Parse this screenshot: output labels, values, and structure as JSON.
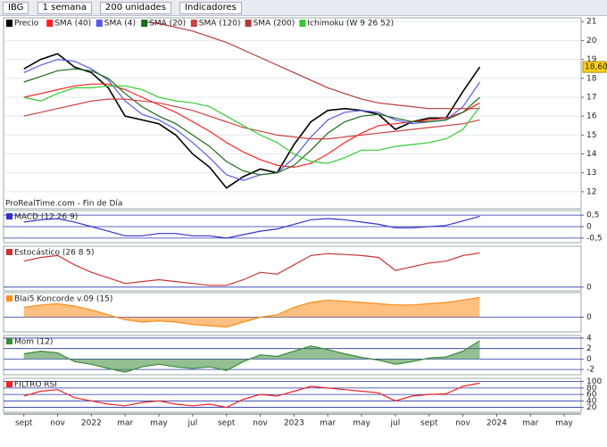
{
  "toolbar": {
    "symbol": "IBG",
    "period": "1 semana",
    "units": "200 unidades",
    "indicators": "Indicadores"
  },
  "chart_data": [
    {
      "type": "line",
      "annotation": "ProRealTime.com - Fin de Día",
      "x": [
        0,
        1,
        2,
        3,
        4,
        5,
        6,
        7,
        8,
        9,
        10,
        11,
        12,
        13,
        14,
        15,
        16,
        17,
        18,
        19,
        20,
        21,
        22,
        23,
        24,
        25,
        26,
        27
      ],
      "xlim": [
        -1.2,
        33
      ],
      "xticks": [
        {
          "value": 0,
          "label": "sept"
        },
        {
          "value": 2,
          "label": "nov"
        },
        {
          "value": 4,
          "label": "2022"
        },
        {
          "value": 6,
          "label": "mar"
        },
        {
          "value": 8,
          "label": "may"
        },
        {
          "value": 10,
          "label": "jul"
        },
        {
          "value": 12,
          "label": "sept"
        },
        {
          "value": 14,
          "label": "nov"
        },
        {
          "value": 16,
          "label": "2023"
        },
        {
          "value": 18,
          "label": "mar"
        },
        {
          "value": 20,
          "label": "may"
        },
        {
          "value": 22,
          "label": "jul"
        },
        {
          "value": 24,
          "label": "sept"
        },
        {
          "value": 26,
          "label": "nov"
        },
        {
          "value": 28,
          "label": "2024"
        },
        {
          "value": 30,
          "label": "mar"
        },
        {
          "value": 32,
          "label": "may"
        }
      ],
      "ylim": [
        11.1,
        21.2
      ],
      "yticks": [
        12,
        13,
        14,
        15,
        16,
        17,
        18,
        19,
        20,
        21
      ],
      "series": [
        {
          "name": "Precio",
          "color": "#000000",
          "values": [
            18.5,
            19.0,
            19.3,
            18.6,
            18.3,
            17.5,
            16.0,
            15.8,
            15.6,
            15.0,
            14.0,
            13.3,
            12.2,
            12.8,
            13.2,
            13.0,
            14.5,
            15.7,
            16.3,
            16.4,
            16.3,
            16.1,
            15.3,
            15.7,
            15.9,
            15.9,
            17.3,
            18.6
          ],
          "value_labels": [
            null,
            null,
            null,
            null,
            null,
            null,
            null,
            null,
            null,
            null,
            null,
            null,
            null,
            null,
            null,
            null,
            null,
            null,
            null,
            null,
            null,
            null,
            null,
            null,
            null,
            null,
            null,
            "18,60"
          ]
        },
        {
          "name": "SMA (40)",
          "color": "#ff2020",
          "values": [
            17.0,
            17.2,
            17.4,
            17.6,
            17.7,
            17.7,
            17.4,
            17.0,
            16.6,
            16.2,
            15.7,
            15.2,
            14.6,
            14.1,
            13.7,
            13.4,
            13.3,
            13.5,
            14.0,
            14.6,
            15.1,
            15.5,
            15.6,
            15.7,
            15.8,
            15.9,
            16.2,
            16.7
          ]
        },
        {
          "name": "SMA (4)",
          "color": "#5a5ae6",
          "values": [
            18.3,
            18.7,
            19.0,
            18.9,
            18.5,
            17.9,
            16.8,
            16.1,
            15.8,
            15.3,
            14.6,
            13.8,
            12.9,
            12.6,
            12.9,
            13.0,
            13.8,
            14.9,
            15.8,
            16.2,
            16.3,
            16.2,
            15.8,
            15.6,
            15.7,
            15.8,
            16.5,
            17.8
          ]
        },
        {
          "name": "SMA (20)",
          "color": "#1a6b1a",
          "values": [
            17.8,
            18.1,
            18.4,
            18.5,
            18.4,
            18.0,
            17.2,
            16.5,
            16.0,
            15.6,
            15.0,
            14.4,
            13.6,
            13.1,
            12.9,
            13.0,
            13.4,
            14.2,
            15.1,
            15.7,
            16.0,
            16.1,
            15.9,
            15.7,
            15.7,
            15.8,
            16.2,
            17.0
          ]
        },
        {
          "name": "SMA (120)",
          "color": "#d04040",
          "values": [
            16.0,
            16.2,
            16.4,
            16.6,
            16.8,
            16.9,
            16.9,
            16.8,
            16.7,
            16.5,
            16.3,
            16.0,
            15.7,
            15.4,
            15.2,
            15.0,
            14.9,
            14.8,
            14.8,
            14.9,
            15.0,
            15.1,
            15.2,
            15.3,
            15.4,
            15.5,
            15.6,
            15.8
          ]
        },
        {
          "name": "SMA (200)",
          "color": "#b83a3a",
          "values": [
            null,
            null,
            null,
            null,
            null,
            null,
            null,
            21.0,
            20.9,
            20.7,
            20.5,
            20.2,
            19.9,
            19.5,
            19.1,
            18.7,
            18.3,
            17.9,
            17.5,
            17.2,
            16.9,
            16.7,
            16.6,
            16.5,
            16.4,
            16.4,
            16.4,
            16.4
          ]
        },
        {
          "name": "Ichimoku (W 9 26 52)",
          "color": "#33cc33",
          "values": [
            17.0,
            16.8,
            17.2,
            17.5,
            17.5,
            17.6,
            17.6,
            17.4,
            17.0,
            16.8,
            16.7,
            16.5,
            16.0,
            15.5,
            15.0,
            14.6,
            14.0,
            13.6,
            13.5,
            13.8,
            14.2,
            14.2,
            14.4,
            14.5,
            14.6,
            14.8,
            15.3,
            16.5
          ]
        }
      ]
    },
    {
      "type": "line",
      "title": "MACD (12 26 9)",
      "ylim": [
        -0.7,
        0.7
      ],
      "yticks": [
        {
          "value": -0.5,
          "label": "-0,5"
        },
        0,
        {
          "value": 0.5,
          "label": "0,5"
        }
      ],
      "series": [
        {
          "name": "MACD",
          "color": "#3333cc",
          "values": [
            0.2,
            0.3,
            0.35,
            0.2,
            0.0,
            -0.2,
            -0.4,
            -0.4,
            -0.3,
            -0.3,
            -0.4,
            -0.4,
            -0.5,
            -0.35,
            -0.2,
            -0.1,
            0.1,
            0.3,
            0.35,
            0.3,
            0.2,
            0.1,
            -0.05,
            -0.05,
            0.0,
            0.05,
            0.25,
            0.45
          ]
        }
      ]
    },
    {
      "type": "line",
      "title": "Estocástico (26 8 5)",
      "ylim": [
        -10,
        110
      ],
      "yticks": [
        0
      ],
      "series": [
        {
          "name": "%K",
          "color": "#cc3333",
          "values": [
            70,
            80,
            85,
            60,
            40,
            25,
            10,
            15,
            20,
            15,
            10,
            5,
            5,
            20,
            40,
            35,
            60,
            85,
            90,
            88,
            85,
            80,
            45,
            55,
            65,
            70,
            85,
            92
          ]
        }
      ]
    },
    {
      "type": "area",
      "title": "Blai5 Koncorde v.09 (15)",
      "ylim": [
        -60,
        100
      ],
      "yticks": [
        0
      ],
      "series": [
        {
          "name": "Koncorde",
          "color": "#ff8c1a",
          "values": [
            40,
            50,
            55,
            45,
            30,
            10,
            -10,
            -20,
            -15,
            -20,
            -30,
            -35,
            -40,
            -20,
            0,
            10,
            40,
            60,
            70,
            65,
            60,
            55,
            50,
            50,
            55,
            60,
            70,
            80
          ]
        }
      ]
    },
    {
      "type": "area",
      "title": "Mom (12)",
      "ylim": [
        -3,
        4.5
      ],
      "yticks": [
        -2,
        0,
        2,
        4
      ],
      "series": [
        {
          "name": "Mom",
          "color": "#3a8a3a",
          "values": [
            1,
            1.5,
            1.2,
            -0.5,
            -1,
            -1.8,
            -2.5,
            -1.5,
            -1,
            -1.5,
            -1.8,
            -1.5,
            -2.2,
            -0.5,
            0.8,
            0.5,
            1.5,
            2.5,
            1.8,
            1,
            0.3,
            -0.2,
            -1,
            -0.5,
            0.2,
            0.4,
            1.5,
            3.5
          ]
        }
      ]
    },
    {
      "type": "line",
      "title": "FILTRO RSI",
      "ylim": [
        5,
        110
      ],
      "yticks": [
        20,
        40,
        60,
        80,
        100
      ],
      "series": [
        {
          "name": "RSI",
          "color": "#ee2222",
          "values": [
            55,
            70,
            75,
            50,
            40,
            30,
            25,
            35,
            40,
            30,
            25,
            30,
            20,
            45,
            60,
            55,
            70,
            85,
            80,
            75,
            70,
            65,
            40,
            55,
            60,
            62,
            85,
            95
          ]
        }
      ]
    }
  ]
}
